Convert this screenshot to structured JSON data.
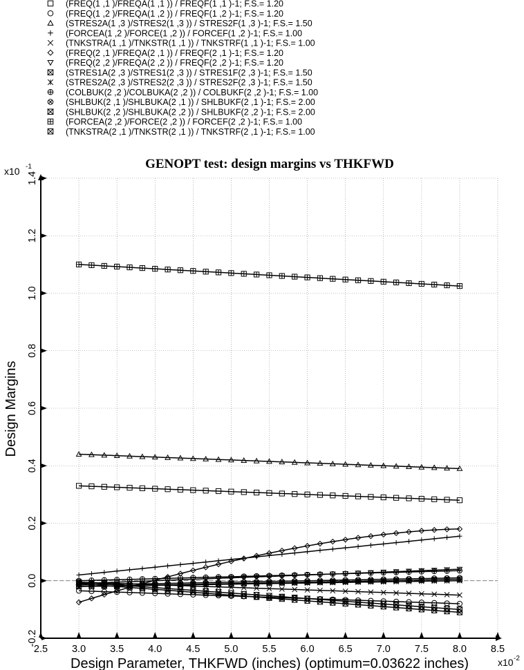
{
  "chart_data": {
    "type": "line",
    "title": "GENOPT test: design margins vs THKFWD",
    "xlabel": "Design Parameter, THKFWD (inches) (optimum=0.03622 inches)",
    "ylabel": "Design Margins",
    "x_multiplier": "x10",
    "x_exponent": "-2",
    "y_multiplier": "x10",
    "y_exponent": "-1",
    "xlim": [
      2.5,
      8.5
    ],
    "ylim": [
      -0.2,
      1.4
    ],
    "xticks": [
      "2.5",
      "3.0",
      "3.5",
      "4.0",
      "4.5",
      "5.0",
      "5.5",
      "6.0",
      "6.5",
      "7.0",
      "7.5",
      "8.0",
      "8.5"
    ],
    "yticks": [
      "-0.2",
      "0.0",
      "0.2",
      "0.4",
      "0.6",
      "0.8",
      "1.0",
      "1.2",
      "1.4"
    ],
    "grid": true,
    "legend_position": "top",
    "x": [
      3.0,
      8.0
    ],
    "series": [
      {
        "name": "(FREQ(1 ,1 )/FREQA(1 ,1 )) / FREQF(1 ,1 )-1; F.S.=  1.20",
        "marker": "square",
        "values": [
          0.33,
          0.28
        ]
      },
      {
        "name": "(FREQ(1 ,2 )/FREQA(1 ,2 )) / FREQF(1 ,2 )-1; F.S.=  1.20",
        "marker": "circle",
        "values": [
          -0.035,
          -0.08
        ]
      },
      {
        "name": "(STRES2A(1 ,3 )/STRES2(1 ,3 )) / STRES2F(1 ,3 )-1; F.S.=  1.50",
        "marker": "triangle-up",
        "values": [
          0.44,
          0.39
        ]
      },
      {
        "name": "(FORCEA(1 ,2 )/FORCE(1 ,2 )) / FORCEF(1 ,2 )-1; F.S.=  1.00",
        "marker": "plus",
        "values": [
          0.02,
          0.155
        ]
      },
      {
        "name": "(TNKSTRA(1 ,1 )/TNKSTR(1 ,1 )) / TNKSTRF(1 ,1 )-1; F.S.=  1.00",
        "marker": "x",
        "values": [
          -0.005,
          -0.05
        ]
      },
      {
        "name": "(FREQ(2 ,1 )/FREQA(2 ,1 )) / FREQF(2 ,1 )-1; F.S.=  1.20",
        "marker": "diamond",
        "values": [
          -0.075,
          0.18
        ]
      },
      {
        "name": "(FREQ(2 ,2 )/FREQA(2 ,2 )) / FREQF(2 ,2 )-1; F.S.=  1.20",
        "marker": "triangle-down",
        "values": [
          -0.01,
          0.04
        ]
      },
      {
        "name": "(STRES1A(2 ,3 )/STRES1(2 ,3 )) / STRES1F(2 ,3 )-1; F.S.=  1.50",
        "marker": "boxed-x",
        "values": [
          -0.01,
          -0.11
        ]
      },
      {
        "name": "(STRES2A(2 ,3 )/STRES2(2 ,3 )) / STRES2F(2 ,3 )-1; F.S.=  1.50",
        "marker": "asterisk",
        "values": [
          -0.02,
          0.0
        ]
      },
      {
        "name": "(COLBUK(2 ,2 )/COLBUKA(2 ,2 )) / COLBUKF(2 ,2 )-1; F.S.=  1.00",
        "marker": "circle-plus",
        "values": [
          0.0,
          0.035
        ]
      },
      {
        "name": "(SHLBUK(2 ,1 )/SHLBUKA(2 ,1 )) / SHLBUKF(2 ,1 )-1; F.S.=  2.00",
        "marker": "circle-cross",
        "values": [
          -0.015,
          0.01
        ]
      },
      {
        "name": "(SHLBUK(2 ,2 )/SHLBUKA(2 ,2 )) / SHLBUKF(2 ,2 )-1; F.S.=  2.00",
        "marker": "hourglass",
        "values": [
          -0.005,
          -0.1
        ]
      },
      {
        "name": "(FORCEA(2 ,2 )/FORCE(2 ,2 )) / FORCEF(2 ,2 )-1; F.S.=  1.00",
        "marker": "square-plus",
        "values": [
          1.1,
          1.025
        ]
      },
      {
        "name": "(TNKSTRA(2 ,1 )/TNKSTR(2 ,1 )) / TNKSTRF(2 ,1 )-1; F.S.=  1.00",
        "marker": "boxed-x",
        "values": [
          -0.02,
          0.005
        ]
      }
    ]
  }
}
